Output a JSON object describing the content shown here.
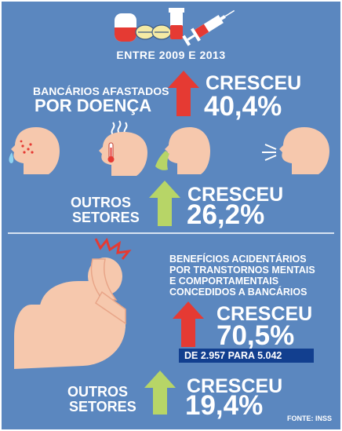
{
  "header": {
    "period": "ENTRE 2009 E 2013"
  },
  "section_sick_leave": {
    "label_line1": "BANCÁRIOS AFASTADOS",
    "label_line2": "POR DOENÇA",
    "bank_status": "CRESCEU",
    "bank_value": "40,4%",
    "others_line1": "OUTROS",
    "others_line2": "SETORES",
    "others_status": "CRESCEU",
    "others_value": "26,2%"
  },
  "section_mental": {
    "label_line1": "BENEFÍCIOS ACIDENTÁRIOS",
    "label_line2": "POR TRANSTORNOS MENTAIS",
    "label_line3": "E COMPORTAMENTAIS",
    "label_line4": "CONCEDIDOS A BANCÁRIOS",
    "bank_status": "CRESCEU",
    "bank_value": "70,5%",
    "bank_detail": "DE 2.957 PARA 5.042",
    "others_line1": "OUTROS",
    "others_line2": "SETORES",
    "others_status": "CRESCEU",
    "others_value": "19,4%"
  },
  "source": "FONTE: INSS",
  "icons": [
    "pill-icon",
    "vial-icon",
    "syringe-icon",
    "sneezing-head-icon",
    "fever-head-icon",
    "vomiting-head-icon",
    "coughing-head-icon",
    "stressed-person-icon",
    "up-arrow-icon"
  ],
  "colors": {
    "background": "#5b87bf",
    "bank_arrow": "#e53a33",
    "others_arrow": "#b7d567",
    "skin": "#f6c8ad",
    "highlight_box": "#123f8f",
    "text": "#ffffff"
  }
}
